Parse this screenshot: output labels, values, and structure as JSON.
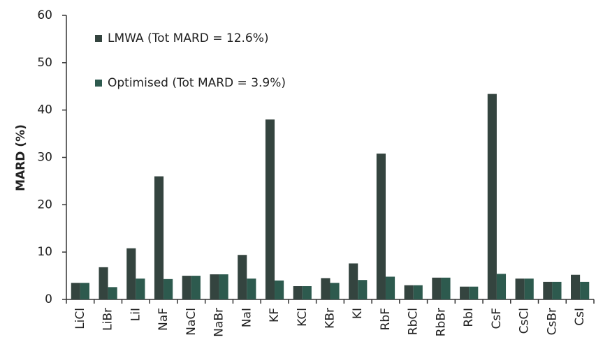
{
  "chart_data": {
    "type": "bar",
    "y_label": "MARD (%)",
    "categories": [
      "LiCl",
      "LiBr",
      "LiI",
      "NaF",
      "NaCl",
      "NaBr",
      "NaI",
      "KF",
      "KCl",
      "KBr",
      "KI",
      "RbF",
      "RbCl",
      "RbBr",
      "RbI",
      "CsF",
      "CsCl",
      "CsBr",
      "CsI"
    ],
    "series": [
      {
        "name": "LMWA (Tot MARD = 12.6%)",
        "color": "#34443f",
        "values": [
          3.5,
          6.8,
          10.8,
          26.0,
          5.0,
          5.3,
          9.4,
          38.0,
          2.8,
          4.5,
          7.6,
          30.8,
          3.0,
          4.6,
          2.7,
          43.4,
          4.4,
          3.7,
          5.2
        ]
      },
      {
        "name": "Optimised (Tot MARD = 3.9%)",
        "color": "#2d5a4e",
        "values": [
          3.5,
          2.6,
          4.4,
          4.3,
          5.0,
          5.3,
          4.4,
          4.0,
          2.8,
          3.5,
          4.1,
          4.8,
          3.0,
          4.6,
          2.7,
          5.4,
          4.4,
          3.7,
          3.7
        ]
      }
    ],
    "ylim": [
      0,
      60
    ],
    "yticks": [
      0,
      10,
      20,
      30,
      40,
      50,
      60
    ],
    "legend": "top-left"
  }
}
